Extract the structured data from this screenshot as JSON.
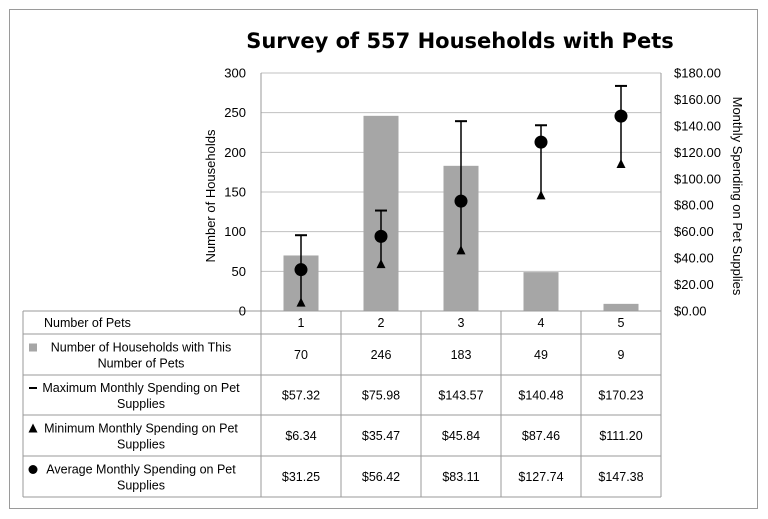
{
  "chart_data": {
    "type": "bar",
    "title": "Survey of 557 Households with Pets",
    "xlabel": "Number of Pets",
    "ylabel": "Number of Households",
    "y2label": "Monthly Spending on Pet Supplies",
    "ylim": [
      0,
      300
    ],
    "y2lim": [
      0,
      180
    ],
    "yticks": [
      "0",
      "50",
      "100",
      "150",
      "200",
      "250",
      "300"
    ],
    "y2ticks": [
      "$0.00",
      "$20.00",
      "$40.00",
      "$60.00",
      "$80.00",
      "$100.00",
      "$120.00",
      "$140.00",
      "$160.00",
      "$180.00"
    ],
    "categories": [
      "1",
      "2",
      "3",
      "4",
      "5"
    ],
    "grid": true,
    "colors": {
      "bar": "#a6a6a6",
      "marker": "#000000",
      "grid": "#c0c0c0"
    },
    "series": [
      {
        "name": "Number of Households with This Number of Pets",
        "type": "bar",
        "axis": "left",
        "values": [
          70,
          246,
          183,
          49,
          9
        ],
        "labels": [
          "70",
          "246",
          "183",
          "49",
          "9"
        ]
      },
      {
        "name": "Maximum Monthly Spending on Pet Supplies",
        "type": "dash",
        "axis": "right",
        "values": [
          57.32,
          75.98,
          143.57,
          140.48,
          170.23
        ],
        "labels": [
          "$57.32",
          "$75.98",
          "$143.57",
          "$140.48",
          "$170.23"
        ]
      },
      {
        "name": "Minimum Monthly Spending on Pet Supplies",
        "type": "triangle",
        "axis": "right",
        "values": [
          6.34,
          35.47,
          45.84,
          87.46,
          111.2
        ],
        "labels": [
          "$6.34",
          "$35.47",
          "$45.84",
          "$87.46",
          "$111.20"
        ]
      },
      {
        "name": "Average Monthly Spending on Pet Supplies",
        "type": "circle",
        "axis": "right",
        "values": [
          31.25,
          56.42,
          83.11,
          127.74,
          147.38
        ],
        "labels": [
          "$31.25",
          "$56.42",
          "$83.11",
          "$127.74",
          "$147.38"
        ]
      }
    ]
  }
}
